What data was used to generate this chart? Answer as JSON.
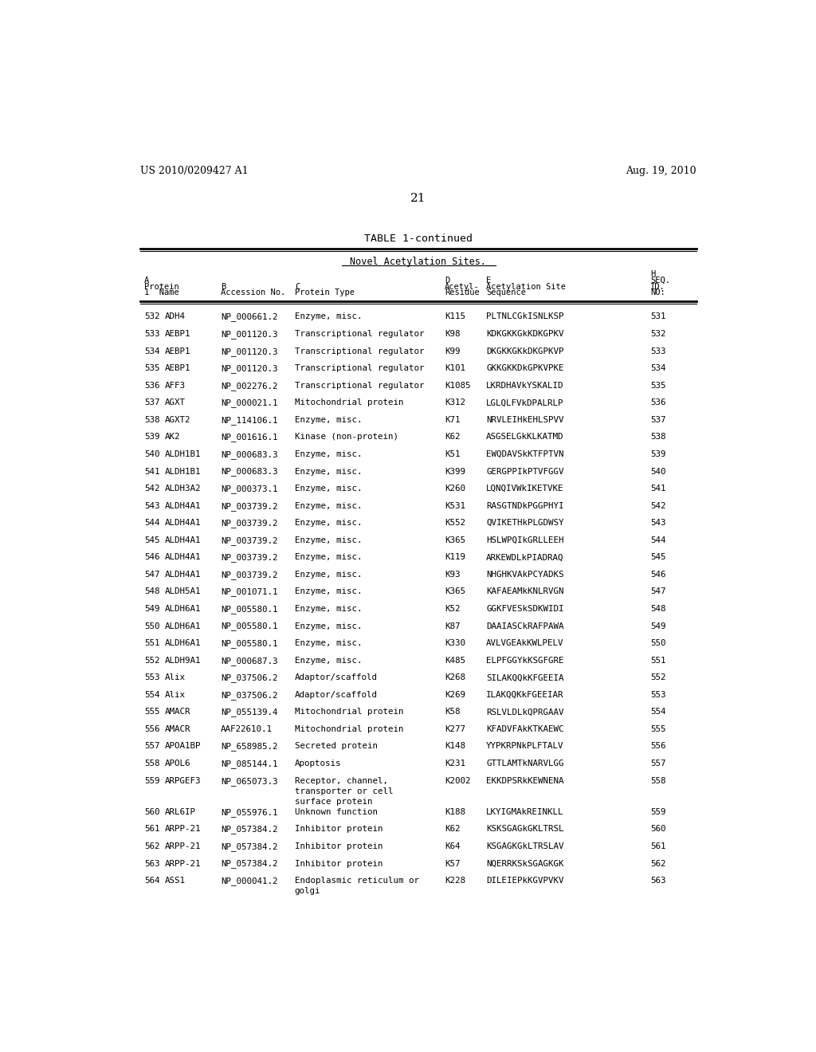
{
  "header_left": "US 2010/0209427 A1",
  "header_right": "Aug. 19, 2010",
  "page_number": "21",
  "table_title": "TABLE 1-continued",
  "table_subtitle": "Novel Acetylation Sites.",
  "rows": [
    [
      "532",
      "ADH4",
      "NP_000661.2",
      "Enzyme, misc.",
      "K115",
      "PLTNLCGkISNLKSP",
      "531"
    ],
    [
      "533",
      "AEBP1",
      "NP_001120.3",
      "Transcriptional regulator",
      "K98",
      "KDKGKKGkKDKGPKV",
      "532"
    ],
    [
      "534",
      "AEBP1",
      "NP_001120.3",
      "Transcriptional regulator",
      "K99",
      "DKGKKGKkDKGPKVP",
      "533"
    ],
    [
      "535",
      "AEBP1",
      "NP_001120.3",
      "Transcriptional regulator",
      "K101",
      "GKKGKKDkGPKVPKE",
      "534"
    ],
    [
      "536",
      "AFF3",
      "NP_002276.2",
      "Transcriptional regulator",
      "K1085",
      "LKRDHAVkYSKALID",
      "535"
    ],
    [
      "537",
      "AGXT",
      "NP_000021.1",
      "Mitochondrial protein",
      "K312",
      "LGLQLFVkDPALRLP",
      "536"
    ],
    [
      "538",
      "AGXT2",
      "NP_114106.1",
      "Enzyme, misc.",
      "K71",
      "NRVLEIHkEHLSPVV",
      "537"
    ],
    [
      "539",
      "AK2",
      "NP_001616.1",
      "Kinase (non-protein)",
      "K62",
      "ASGSELGkKLKATMD",
      "538"
    ],
    [
      "540",
      "ALDH1B1",
      "NP_000683.3",
      "Enzyme, misc.",
      "K51",
      "EWQDAVSkKTFPTVN",
      "539"
    ],
    [
      "541",
      "ALDH1B1",
      "NP_000683.3",
      "Enzyme, misc.",
      "K399",
      "GERGPPIkPTVFGGV",
      "540"
    ],
    [
      "542",
      "ALDH3A2",
      "NP_000373.1",
      "Enzyme, misc.",
      "K260",
      "LQNQIVWkIKETVKE",
      "541"
    ],
    [
      "543",
      "ALDH4A1",
      "NP_003739.2",
      "Enzyme, misc.",
      "K531",
      "RASGTNDkPGGPHYI",
      "542"
    ],
    [
      "544",
      "ALDH4A1",
      "NP_003739.2",
      "Enzyme, misc.",
      "K552",
      "QVIKETHkPLGDWSY",
      "543"
    ],
    [
      "545",
      "ALDH4A1",
      "NP_003739.2",
      "Enzyme, misc.",
      "K365",
      "HSLWPQIkGRLLEEH",
      "544"
    ],
    [
      "546",
      "ALDH4A1",
      "NP_003739.2",
      "Enzyme, misc.",
      "K119",
      "ARKEWDLkPIADRAQ",
      "545"
    ],
    [
      "547",
      "ALDH4A1",
      "NP_003739.2",
      "Enzyme, misc.",
      "K93",
      "NHGHKVAkPCYADKS",
      "546"
    ],
    [
      "548",
      "ALDH5A1",
      "NP_001071.1",
      "Enzyme, misc.",
      "K365",
      "KAFAEAMkKNLRVGN",
      "547"
    ],
    [
      "549",
      "ALDH6A1",
      "NP_005580.1",
      "Enzyme, misc.",
      "K52",
      "GGKFVESkSDKWIDI",
      "548"
    ],
    [
      "550",
      "ALDH6A1",
      "NP_005580.1",
      "Enzyme, misc.",
      "K87",
      "DAAIASCkRAFPAWA",
      "549"
    ],
    [
      "551",
      "ALDH6A1",
      "NP_005580.1",
      "Enzyme, misc.",
      "K330",
      "AVLVGEAkKWLPELV",
      "550"
    ],
    [
      "552",
      "ALDH9A1",
      "NP_000687.3",
      "Enzyme, misc.",
      "K485",
      "ELPFGGYkKSGFGRE",
      "551"
    ],
    [
      "553",
      "Alix",
      "NP_037506.2",
      "Adaptor/scaffold",
      "K268",
      "SILAKQQkKFGEEIA",
      "552"
    ],
    [
      "554",
      "Alix",
      "NP_037506.2",
      "Adaptor/scaffold",
      "K269",
      "ILAKQQKkFGEEIAR",
      "553"
    ],
    [
      "555",
      "AMACR",
      "NP_055139.4",
      "Mitochondrial protein",
      "K58",
      "RSLVLDLkQPRGAAV",
      "554"
    ],
    [
      "556",
      "AMACR",
      "AAF22610.1",
      "Mitochondrial protein",
      "K277",
      "KFADVFAkKTKAEWC",
      "555"
    ],
    [
      "557",
      "APOA1BP",
      "NP_658985.2",
      "Secreted protein",
      "K148",
      "YYPKRPNkPLFTALV",
      "556"
    ],
    [
      "558",
      "APOL6",
      "NP_085144.1",
      "Apoptosis",
      "K231",
      "GTTLAMTkNARVLGG",
      "557"
    ],
    [
      "559",
      "ARPGEF3",
      "NP_065073.3",
      "Receptor, channel,\ntransporter or cell\nsurface protein",
      "K2002",
      "EKKDPSRkKEWNENA",
      "558"
    ],
    [
      "560",
      "ARL6IP",
      "NP_055976.1",
      "Unknown function",
      "K188",
      "LKYIGMAkREINKLL",
      "559"
    ],
    [
      "561",
      "ARPP-21",
      "NP_057384.2",
      "Inhibitor protein",
      "K62",
      "KSKSGAGkGKLTRSL",
      "560"
    ],
    [
      "562",
      "ARPP-21",
      "NP_057384.2",
      "Inhibitor protein",
      "K64",
      "KSGAGKGkLTRSLAV",
      "561"
    ],
    [
      "563",
      "ARPP-21",
      "NP_057384.2",
      "Inhibitor protein",
      "K57",
      "NQERRKSkSGAGKGK",
      "562"
    ],
    [
      "564",
      "ASS1",
      "NP_000041.2",
      "Endoplasmic reticulum or\ngolgi",
      "K228",
      "DILEIEPkKGVPVKV",
      "563"
    ]
  ],
  "bg_color": "#ffffff",
  "text_color": "#000000"
}
